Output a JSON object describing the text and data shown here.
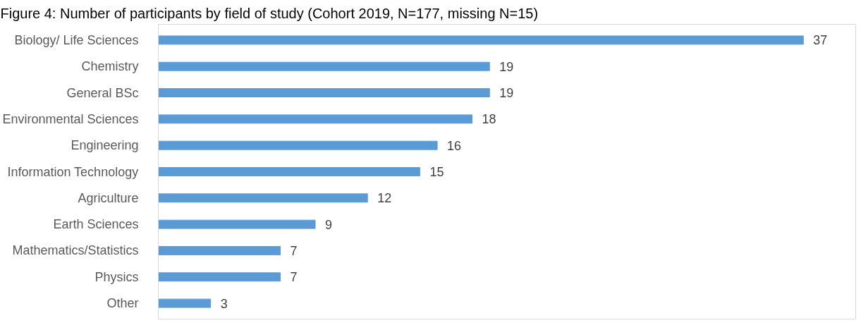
{
  "chart_data": {
    "type": "bar",
    "orientation": "horizontal",
    "title": "Figure 4: Number of participants by field of study (Cohort 2019, N=177, missing N=15)",
    "categories": [
      "Biology/ Life Sciences",
      "Chemistry",
      "General BSc",
      "Environmental Sciences",
      "Engineering",
      "Information Technology",
      "Agriculture",
      "Earth Sciences",
      "Mathematics/Statistics",
      "Physics",
      "Other"
    ],
    "values": [
      37,
      19,
      19,
      18,
      16,
      15,
      12,
      9,
      7,
      7,
      3
    ],
    "color": "#5b9bd5",
    "xlim": [
      0,
      40
    ],
    "data_labels": true,
    "grid": false,
    "tick_labels": "y"
  }
}
